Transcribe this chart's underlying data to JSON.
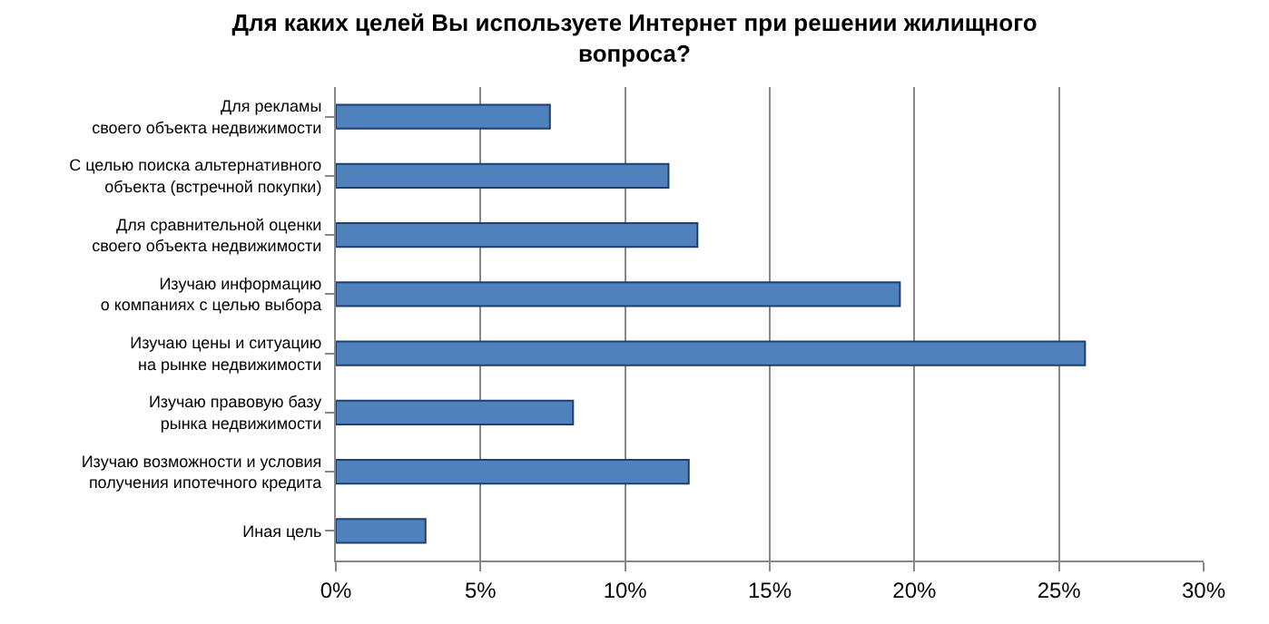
{
  "chart_data": {
    "type": "bar",
    "orientation": "horizontal",
    "title": "Для каких целей Вы используете Интернет при решении жилищного\nвопроса?",
    "categories": [
      "Для рекламы\nсвоего объекта недвижимости",
      "С целью поиска альтернативного\nобъекта (встречной покупки)",
      "Для сравнительной оценки\nсвоего объекта недвижимости",
      "Изучаю информацию\nо компаниях с целью выбора",
      "Изучаю цены и ситуацию\nна рынке недвижимости",
      "Изучаю правовую базу\nрынка недвижимости",
      "Изучаю возможности и условия\nполучения ипотечного кредита",
      "Иная цель"
    ],
    "values": [
      7.4,
      11.5,
      12.5,
      19.5,
      25.9,
      8.2,
      12.2,
      3.1
    ],
    "color": "#4f81bd",
    "xlim": [
      0,
      30
    ],
    "xticks": [
      {
        "value": 0,
        "label": "0%"
      },
      {
        "value": 5,
        "label": "5%"
      },
      {
        "value": 10,
        "label": "10%"
      },
      {
        "value": 15,
        "label": "15%"
      },
      {
        "value": 20,
        "label": "20%"
      },
      {
        "value": 25,
        "label": "25%"
      },
      {
        "value": 30,
        "label": "30%"
      }
    ],
    "grid": "x"
  }
}
